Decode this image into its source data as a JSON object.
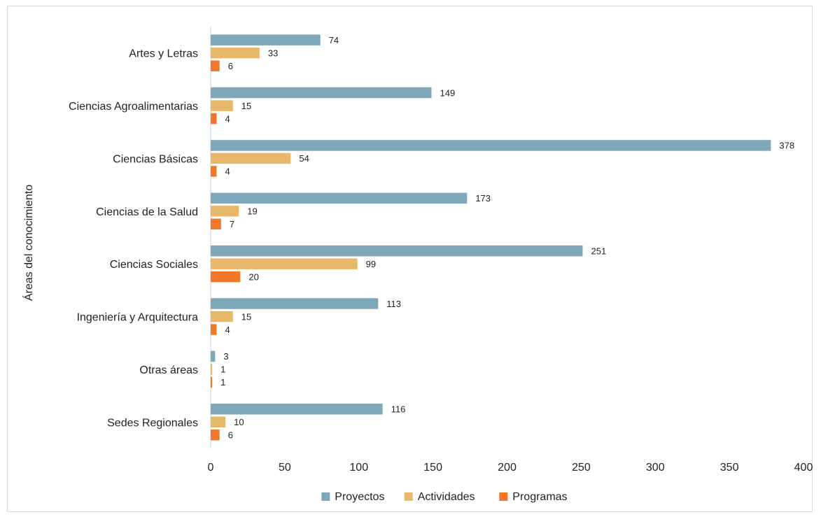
{
  "chart_data": {
    "type": "bar",
    "orientation": "horizontal",
    "categories": [
      "Artes y Letras",
      "Ciencias Agroalimentarias",
      "Ciencias Básicas",
      "Ciencias de la Salud",
      "Ciencias Sociales",
      "Ingeniería y Arquitectura",
      "Otras áreas",
      "Sedes Regionales"
    ],
    "series": [
      {
        "name": "Proyectos",
        "color": "#7fa7ba",
        "values": [
          74,
          149,
          378,
          173,
          251,
          113,
          3,
          116
        ]
      },
      {
        "name": "Actividades",
        "color": "#e8b86a",
        "values": [
          33,
          15,
          54,
          19,
          99,
          15,
          1,
          10
        ]
      },
      {
        "name": "Programas",
        "color": "#f07828",
        "values": [
          6,
          4,
          4,
          7,
          20,
          4,
          1,
          6
        ]
      }
    ],
    "xlim": [
      0,
      400
    ],
    "xticks": [
      "0",
      "50",
      "100",
      "150",
      "200",
      "250",
      "300",
      "350",
      "400"
    ],
    "ylabel": "Áreas del conocimiento",
    "xlabel": "",
    "title": "",
    "grid": false,
    "data_labels": true,
    "legend_position": "bottom"
  }
}
